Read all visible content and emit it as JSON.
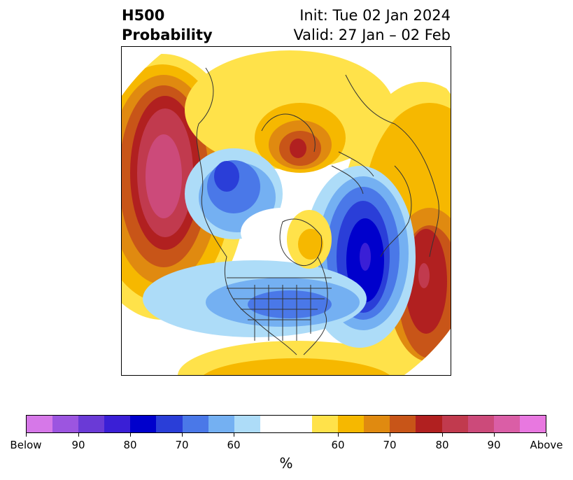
{
  "title": {
    "left_line1": "H500",
    "left_line2": "Probability",
    "right_line1": "Init: Tue 02 Jan 2024",
    "right_line2": "Valid: 27 Jan – 02 Feb"
  },
  "colorbar": {
    "label": "%",
    "ticks": [
      "Below",
      "90",
      "80",
      "70",
      "60",
      "60",
      "70",
      "80",
      "90",
      "Above"
    ],
    "below_colors": [
      "#d678e8",
      "#9c55e0",
      "#6a3ad6",
      "#3a1fd6",
      "#0000cc",
      "#2a3ed8",
      "#4a78e8",
      "#74b0f2",
      "#addcf8"
    ],
    "neutral_color": "#ffffff",
    "above_colors": [
      "#ffe24a",
      "#f6b800",
      "#e08a10",
      "#c85518",
      "#b12020",
      "#c13a4e",
      "#cc4a7a",
      "#da5ea6",
      "#e878e0"
    ]
  },
  "map": {
    "projection": "north-polar-stereographic",
    "anomaly_centers": [
      {
        "region": "North Pacific / Gulf of Alaska",
        "sign": "above",
        "peak": "90+"
      },
      {
        "region": "Northern Russia / Kara Sea",
        "sign": "above",
        "peak": "80"
      },
      {
        "region": "Eastern Europe / Mediterranean",
        "sign": "above",
        "peak": "80"
      },
      {
        "region": "Greenland / North Atlantic",
        "sign": "below",
        "peak": "80+"
      },
      {
        "region": "Canadian Arctic / Alaska",
        "sign": "below",
        "peak": "70"
      },
      {
        "region": "Central / Eastern US",
        "sign": "below",
        "peak": "70"
      }
    ]
  }
}
